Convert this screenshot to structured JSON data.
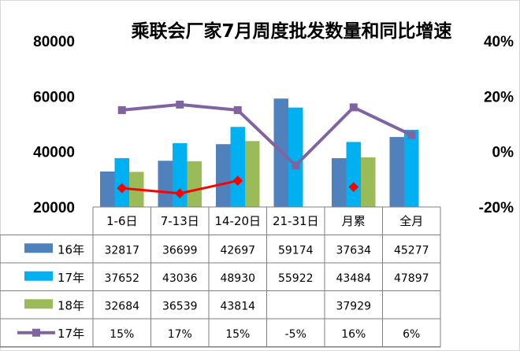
{
  "chart_data": {
    "type": "bar",
    "title": "乘联会厂家7月周度批发数量和同比增速",
    "categories": [
      "1-6日",
      "7-13日",
      "14-20日",
      "21-31日",
      "月累",
      "全月"
    ],
    "y_axis": {
      "ticks": [
        "20000",
        "40000",
        "60000",
        "80000"
      ],
      "range": [
        20000,
        80000
      ]
    },
    "y2_axis": {
      "ticks": [
        "-20%",
        "0%",
        "20%",
        "40%"
      ],
      "range": [
        -20,
        40
      ]
    },
    "grid": false,
    "series": [
      {
        "name": "16年",
        "kind": "bar",
        "color": "#4f81bd",
        "values": [
          32817,
          36699,
          42697,
          59174,
          37634,
          45277
        ],
        "labels": [
          "32817",
          "36699",
          "42697",
          "59174",
          "37634",
          "45277"
        ]
      },
      {
        "name": "17年",
        "kind": "bar",
        "color": "#00b0f0",
        "values": [
          37652,
          43036,
          48930,
          55922,
          43484,
          47897
        ],
        "labels": [
          "37652",
          "43036",
          "48930",
          "55922",
          "43484",
          "47897"
        ]
      },
      {
        "name": "18年",
        "kind": "bar",
        "color": "#9bbb59",
        "values": [
          32684,
          36539,
          43814,
          null,
          37929,
          null
        ],
        "labels": [
          "32684",
          "36539",
          "43814",
          "",
          "37929",
          ""
        ]
      },
      {
        "name": "17年",
        "kind": "line",
        "axis": "right",
        "color": "#8064a2",
        "values": [
          15,
          17,
          15,
          -5,
          16,
          6
        ],
        "labels": [
          "15%",
          "17%",
          "15%",
          "-5%",
          "16%",
          "6%"
        ]
      },
      {
        "name": "18年",
        "kind": "line",
        "axis": "right",
        "color": "#ff0000",
        "values": [
          -13.2,
          -15.1,
          -10.5,
          null,
          -12.8,
          null
        ],
        "labels": [
          "-13.2%",
          "-15.1%",
          "-10.5%",
          "",
          "-12.8%",
          ""
        ]
      }
    ]
  }
}
